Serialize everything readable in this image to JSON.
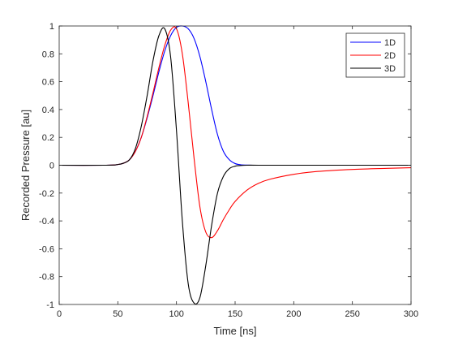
{
  "chart_data": {
    "type": "line",
    "title": "",
    "xlabel": "Time [ns]",
    "ylabel": "Recorded Pressure [au]",
    "xlim": [
      0,
      300
    ],
    "ylim": [
      -1,
      1
    ],
    "xticks": [
      0,
      50,
      100,
      150,
      200,
      250,
      300
    ],
    "yticks": [
      -1,
      -0.8,
      -0.6,
      -0.4,
      -0.2,
      0,
      0.2,
      0.4,
      0.6,
      0.8,
      1
    ],
    "xtick_labels": [
      "0",
      "50",
      "100",
      "150",
      "200",
      "250",
      "300"
    ],
    "ytick_labels": [
      "-1",
      "-0.8",
      "-0.6",
      "-0.4",
      "-0.2",
      "0",
      "0.2",
      "0.4",
      "0.6",
      "0.8",
      "1"
    ],
    "grid": false,
    "legend_position": "top-right",
    "series": [
      {
        "name": "1D",
        "color": "#0000ff",
        "x": [
          0,
          40,
          50,
          55,
          60,
          65,
          70,
          75,
          80,
          85,
          90,
          95,
          100,
          105,
          110,
          115,
          120,
          125,
          130,
          135,
          140,
          145,
          150,
          155,
          160,
          165,
          170,
          200,
          250,
          300
        ],
        "y": [
          0,
          0,
          0.005,
          0.015,
          0.04,
          0.1,
          0.2,
          0.34,
          0.5,
          0.67,
          0.82,
          0.93,
          0.99,
          1.0,
          0.98,
          0.91,
          0.78,
          0.6,
          0.4,
          0.22,
          0.1,
          0.04,
          0.012,
          0.003,
          0.001,
          0,
          0,
          0,
          0,
          0
        ]
      },
      {
        "name": "2D",
        "color": "#ff0000",
        "x": [
          0,
          40,
          50,
          55,
          60,
          65,
          70,
          75,
          80,
          85,
          90,
          95,
          100,
          105,
          110,
          115,
          120,
          125,
          130,
          135,
          140,
          145,
          150,
          160,
          170,
          180,
          200,
          220,
          250,
          280,
          300
        ],
        "y": [
          0,
          0,
          0.005,
          0.015,
          0.04,
          0.1,
          0.2,
          0.35,
          0.52,
          0.7,
          0.86,
          0.97,
          0.98,
          0.8,
          0.45,
          0.05,
          -0.3,
          -0.48,
          -0.52,
          -0.47,
          -0.39,
          -0.32,
          -0.26,
          -0.18,
          -0.13,
          -0.1,
          -0.065,
          -0.045,
          -0.03,
          -0.022,
          -0.018
        ]
      },
      {
        "name": "3D",
        "color": "#000000",
        "x": [
          0,
          40,
          50,
          55,
          60,
          65,
          70,
          75,
          80,
          85,
          90,
          95,
          100,
          105,
          110,
          115,
          120,
          125,
          130,
          135,
          140,
          145,
          150,
          155,
          160,
          170,
          200,
          250,
          300
        ],
        "y": [
          0,
          0,
          0.005,
          0.015,
          0.04,
          0.12,
          0.28,
          0.5,
          0.75,
          0.93,
          0.98,
          0.78,
          0.25,
          -0.4,
          -0.85,
          -0.99,
          -0.95,
          -0.72,
          -0.43,
          -0.2,
          -0.08,
          -0.025,
          -0.007,
          -0.002,
          0,
          0,
          0,
          0,
          0
        ]
      }
    ]
  }
}
